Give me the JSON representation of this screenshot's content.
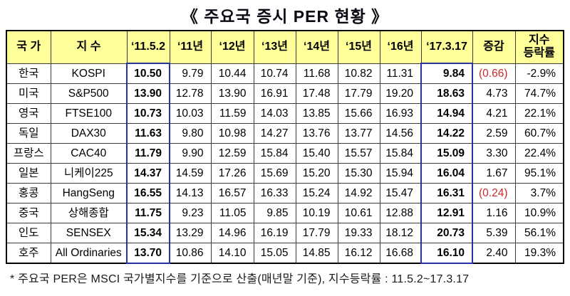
{
  "title": "《 주요국 증시 PER 현황 》",
  "colors": {
    "header_bg": "#ffff99",
    "highlight_border": "#2832a2",
    "negative": "#cc2b2b",
    "inner_border": "#3c3c3c"
  },
  "table": {
    "headers": [
      "국 가",
      "지 수",
      "‘11.5.2",
      "‘11년",
      "‘12년",
      "‘13년",
      "‘14년",
      "‘15년",
      "‘16년",
      "‘17.3.17",
      "증감",
      "지수\n등락률"
    ],
    "rows": [
      {
        "country": "한국",
        "index": "KOSPI",
        "values": [
          "10.50",
          "9.79",
          "10.44",
          "10.74",
          "11.68",
          "10.82",
          "11.31",
          "9.84"
        ],
        "change": "(0.66)",
        "change_negative": true,
        "return_pct": "-2.9%"
      },
      {
        "country": "미국",
        "index": "S&P500",
        "values": [
          "13.90",
          "12.78",
          "13.90",
          "16.91",
          "17.48",
          "17.79",
          "19.20",
          "18.63"
        ],
        "change": "4.73",
        "change_negative": false,
        "return_pct": "74.7%"
      },
      {
        "country": "영국",
        "index": "FTSE100",
        "values": [
          "10.73",
          "10.03",
          "11.59",
          "14.03",
          "13.85",
          "15.66",
          "16.93",
          "14.94"
        ],
        "change": "4.21",
        "change_negative": false,
        "return_pct": "22.1%"
      },
      {
        "country": "독일",
        "index": "DAX30",
        "values": [
          "11.63",
          "9.80",
          "10.98",
          "14.27",
          "13.76",
          "13.77",
          "14.56",
          "14.22"
        ],
        "change": "2.59",
        "change_negative": false,
        "return_pct": "60.7%"
      },
      {
        "country": "프랑스",
        "index": "CAC40",
        "values": [
          "11.79",
          "9.90",
          "12.59",
          "15.84",
          "15.40",
          "15.57",
          "15.84",
          "15.09"
        ],
        "change": "3.30",
        "change_negative": false,
        "return_pct": "22.4%"
      },
      {
        "country": "일본",
        "index": "니케이225",
        "values": [
          "14.37",
          "14.59",
          "17.26",
          "15.69",
          "15.20",
          "15.30",
          "15.94",
          "16.04"
        ],
        "change": "1.67",
        "change_negative": false,
        "return_pct": "95.1%"
      },
      {
        "country": "홍콩",
        "index": "HangSeng",
        "values": [
          "16.55",
          "14.13",
          "16.57",
          "16.33",
          "15.24",
          "14.92",
          "15.47",
          "16.31"
        ],
        "change": "(0.24)",
        "change_negative": true,
        "return_pct": "3.7%"
      },
      {
        "country": "중국",
        "index": "상해종합",
        "values": [
          "11.75",
          "9.23",
          "11.05",
          "9.85",
          "10.19",
          "10.61",
          "12.88",
          "12.91"
        ],
        "change": "1.16",
        "change_negative": false,
        "return_pct": "10.9%"
      },
      {
        "country": "인도",
        "index": "SENSEX",
        "values": [
          "15.34",
          "13.29",
          "14.96",
          "16.19",
          "17.79",
          "19.33",
          "18.12",
          "20.73"
        ],
        "change": "5.39",
        "change_negative": false,
        "return_pct": "56.1%"
      },
      {
        "country": "호주",
        "index": "All Ordinaries",
        "values": [
          "13.70",
          "10.86",
          "14.10",
          "15.05",
          "14.85",
          "16.12",
          "16.68",
          "16.10"
        ],
        "change": "2.40",
        "change_negative": false,
        "return_pct": "19.3%"
      }
    ]
  },
  "footnote": "* 주요국 PER은 MSCI 국가별지수를 기준으로 산출(매년말 기준), 지수등락률 : 11.5.2~17.3.17"
}
